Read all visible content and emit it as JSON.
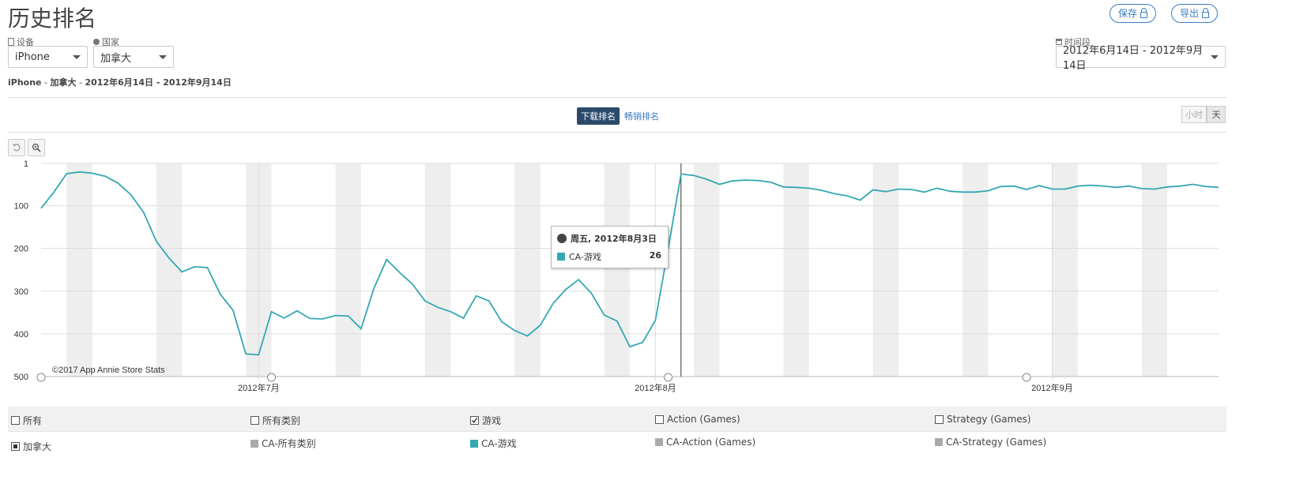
{
  "page_title": "历史排名",
  "actions": {
    "save": "保存",
    "export": "导出"
  },
  "filters": {
    "device_label": "设备",
    "device_value": "iPhone",
    "country_label": "国家",
    "country_value": "加拿大",
    "period_label": "时间段",
    "period_value": "2012年6月14日 - 2012年9月14日"
  },
  "summary": {
    "device": "iPhone",
    "sep1": " - ",
    "country": "加拿大",
    "sep2": " - ",
    "range": "2012年6月14日 - 2012年9月14日"
  },
  "rank_tabs": {
    "download": "下载排名",
    "grossing": "畅销排名"
  },
  "granularity": {
    "hour": "小时",
    "day": "天"
  },
  "copyright": "©2017 App Annie Store Stats",
  "tooltip": {
    "date": "周五, 2012年8月3日",
    "series": "CA-游戏",
    "value": "26"
  },
  "colors": {
    "series": "#35a7b3",
    "grey": "#aaaaaa",
    "weekend_band": "#eeeeee",
    "dark_tab": "#2b4a6b",
    "link": "#3a7bbf"
  },
  "categories": [
    {
      "label": "所有",
      "checked": false
    },
    {
      "label": "所有类别",
      "checked": false
    },
    {
      "label": "游戏",
      "checked": true
    },
    {
      "label": "Action (Games)",
      "checked": false
    },
    {
      "label": "Strategy (Games)",
      "checked": false
    }
  ],
  "series_legend": [
    {
      "label": "加拿大",
      "kind": "checkbox-partial"
    },
    {
      "label": "CA-所有类别",
      "color": "#aaaaaa"
    },
    {
      "label": "CA-游戏",
      "color": "#35a7b3"
    },
    {
      "label": "CA-Action (Games)",
      "color": "#aaaaaa"
    },
    {
      "label": "CA-Strategy (Games)",
      "color": "#aaaaaa"
    }
  ],
  "chart_data": {
    "type": "line",
    "title": "",
    "ylabel": "",
    "y_reversed": true,
    "ylim": [
      1,
      500
    ],
    "y_ticks": [
      "1",
      "100",
      "200",
      "300",
      "400",
      "500"
    ],
    "x_tick_labels": [
      "2012年7月",
      "2012年8月",
      "2012年9月"
    ],
    "x_range": [
      "2012-06-14",
      "2012-09-14"
    ],
    "grid": true,
    "weekend_bands": true,
    "series": [
      {
        "name": "CA-游戏",
        "color": "#35a7b3",
        "x": [
          "06-14",
          "06-15",
          "06-16",
          "06-17",
          "06-18",
          "06-19",
          "06-20",
          "06-21",
          "06-22",
          "06-23",
          "06-24",
          "06-25",
          "06-26",
          "06-27",
          "06-28",
          "06-29",
          "06-30",
          "07-01",
          "07-02",
          "07-03",
          "07-04",
          "07-05",
          "07-06",
          "07-07",
          "07-08",
          "07-09",
          "07-10",
          "07-11",
          "07-12",
          "07-13",
          "07-14",
          "07-15",
          "07-16",
          "07-17",
          "07-18",
          "07-19",
          "07-20",
          "07-21",
          "07-22",
          "07-23",
          "07-24",
          "07-25",
          "07-26",
          "07-27",
          "07-28",
          "07-29",
          "07-30",
          "07-31",
          "08-01",
          "08-02",
          "08-03",
          "08-04",
          "08-05",
          "08-06",
          "08-07",
          "08-08",
          "08-09",
          "08-10",
          "08-11",
          "08-12",
          "08-13",
          "08-14",
          "08-15",
          "08-16",
          "08-17",
          "08-18",
          "08-19",
          "08-20",
          "08-21",
          "08-22",
          "08-23",
          "08-24",
          "08-25",
          "08-26",
          "08-27",
          "08-28",
          "08-29",
          "08-30",
          "08-31",
          "09-01",
          "09-02",
          "09-03",
          "09-04",
          "09-05",
          "09-06",
          "09-07",
          "09-08",
          "09-09",
          "09-10",
          "09-11",
          "09-12",
          "09-13",
          "09-14"
        ],
        "values": [
          106,
          68,
          25,
          21,
          24,
          31,
          47,
          74,
          115,
          183,
          223,
          255,
          243,
          245,
          307,
          345,
          447,
          449,
          348,
          363,
          346,
          364,
          365,
          357,
          358,
          388,
          294,
          226,
          256,
          283,
          323,
          338,
          348,
          363,
          311,
          323,
          372,
          392,
          405,
          380,
          329,
          296,
          273,
          305,
          356,
          370,
          430,
          420,
          368,
          200,
          26,
          29,
          38,
          50,
          42,
          40,
          41,
          45,
          56,
          57,
          59,
          64,
          72,
          77,
          87,
          63,
          67,
          61,
          62,
          68,
          59,
          66,
          68,
          68,
          65,
          55,
          54,
          62,
          53,
          61,
          61,
          54,
          52,
          54,
          57,
          54,
          60,
          61,
          56,
          54,
          50,
          55,
          57
        ]
      }
    ]
  }
}
